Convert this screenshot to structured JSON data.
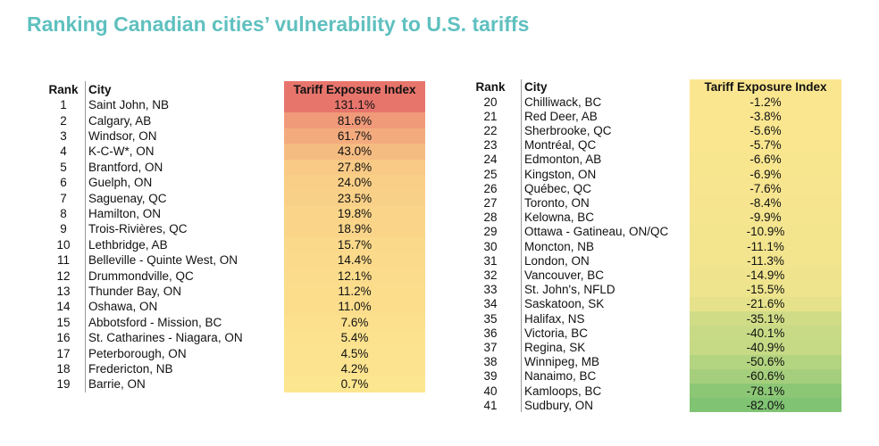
{
  "title": "Ranking Canadian cities’ vulnerability to U.S. tariffs",
  "tables": [
    {
      "header": [
        "Rank",
        "City",
        "Tariff Exposure Index"
      ],
      "header_color": "#e8756c",
      "rows": [
        [
          "1",
          "Saint John, NB",
          "131.1%"
        ],
        [
          "2",
          "Calgary, AB",
          "81.6%"
        ],
        [
          "3",
          "Windsor, ON",
          "61.7%"
        ],
        [
          "4",
          "K-C-W*, ON",
          "43.0%"
        ],
        [
          "5",
          "Brantford, ON",
          "27.8%"
        ],
        [
          "6",
          "Guelph, ON",
          "24.0%"
        ],
        [
          "7",
          "Saguenay, QC",
          "23.5%"
        ],
        [
          "8",
          "Hamilton, ON",
          "19.8%"
        ],
        [
          "9",
          "Trois-Rivières, QC",
          "18.9%"
        ],
        [
          "10",
          "Lethbridge, AB",
          "15.7%"
        ],
        [
          "11",
          "Belleville - Quinte West, ON",
          "14.4%"
        ],
        [
          "12",
          "Drummondville, QC",
          "12.1%"
        ],
        [
          "13",
          "Thunder Bay, ON",
          "11.2%"
        ],
        [
          "14",
          "Oshawa, ON",
          "11.0%"
        ],
        [
          "15",
          "Abbotsford - Mission, BC",
          "7.6%"
        ],
        [
          "16",
          "St. Catharines - Niagara, ON",
          "5.4%"
        ],
        [
          "17",
          "Peterborough, ON",
          "4.5%"
        ],
        [
          "18",
          "Fredericton, NB",
          "4.2%"
        ],
        [
          "19",
          "Barrie, ON",
          "0.7%"
        ]
      ],
      "colors": [
        "#e8756c",
        "#f09a7a",
        "#f3ab7e",
        "#f5bc82",
        "#f8ca85",
        "#f9cf87",
        "#f9d087",
        "#fad488",
        "#fad589",
        "#fad98a",
        "#fbda8b",
        "#fbdc8c",
        "#fbdd8c",
        "#fbdd8c",
        "#fce08d",
        "#fce28e",
        "#fce38f",
        "#fce38f",
        "#fde690"
      ]
    },
    {
      "header": [
        "Rank",
        "City",
        "Tariff Exposure Index"
      ],
      "header_color": "#fbe690",
      "rows": [
        [
          "20",
          "Chilliwack, BC",
          "-1.2%"
        ],
        [
          "21",
          "Red Deer, AB",
          "-3.8%"
        ],
        [
          "22",
          "Sherbrooke, QC",
          "-5.6%"
        ],
        [
          "23",
          "Montréal, QC",
          "-5.7%"
        ],
        [
          "24",
          "Edmonton, AB",
          "-6.6%"
        ],
        [
          "25",
          "Kingston, ON",
          "-6.9%"
        ],
        [
          "26",
          "Québec, QC",
          "-7.6%"
        ],
        [
          "27",
          "Toronto, ON",
          "-8.4%"
        ],
        [
          "28",
          "Kelowna, BC",
          "-9.9%"
        ],
        [
          "29",
          "Ottawa - Gatineau, ON/QC",
          "-10.9%"
        ],
        [
          "30",
          "Moncton, NB",
          "-11.1%"
        ],
        [
          "31",
          "London, ON",
          "-11.3%"
        ],
        [
          "32",
          "Vancouver, BC",
          "-14.9%"
        ],
        [
          "33",
          "St. John's, NFLD",
          "-15.5%"
        ],
        [
          "34",
          "Saskatoon, SK",
          "-21.6%"
        ],
        [
          "35",
          "Halifax, NS",
          "-35.1%"
        ],
        [
          "36",
          "Victoria, BC",
          "-40.1%"
        ],
        [
          "37",
          "Regina, SK",
          "-40.9%"
        ],
        [
          "38",
          "Winnipeg, MB",
          "-50.6%"
        ],
        [
          "39",
          "Nanaimo, BC",
          "-60.6%"
        ],
        [
          "40",
          "Kamloops, BC",
          "-78.1%"
        ],
        [
          "41",
          "Sudbury, ON",
          "-82.0%"
        ]
      ],
      "colors": [
        "#fbe690",
        "#fbe690",
        "#f9e68f",
        "#f9e68f",
        "#f8e68f",
        "#f8e68f",
        "#f7e58f",
        "#f6e58e",
        "#f4e58e",
        "#f3e58e",
        "#f3e58e",
        "#f3e58e",
        "#efe48d",
        "#eee48d",
        "#e6e28b",
        "#d1dc87",
        "#c8da85",
        "#c6d985",
        "#b3d480",
        "#a5cf7d",
        "#8cc776",
        "#80c373"
      ]
    }
  ]
}
